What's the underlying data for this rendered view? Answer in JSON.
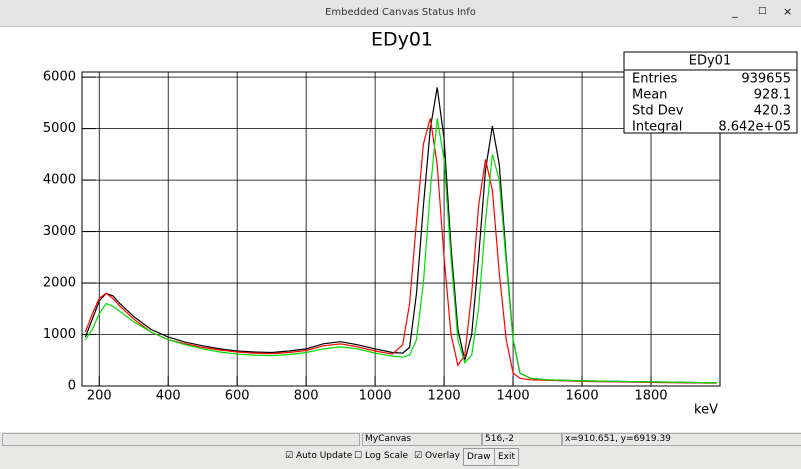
{
  "window_title": "Embedded Canvas Status Info",
  "chart_data": {
    "type": "line",
    "title": "EDy01",
    "x_label": "keV",
    "x": [
      160,
      180,
      200,
      220,
      240,
      260,
      300,
      350,
      400,
      450,
      500,
      550,
      600,
      650,
      700,
      750,
      800,
      850,
      900,
      950,
      1000,
      1050,
      1080,
      1100,
      1120,
      1140,
      1160,
      1180,
      1200,
      1220,
      1240,
      1260,
      1280,
      1300,
      1320,
      1340,
      1360,
      1380,
      1400,
      1420,
      1450,
      1500,
      1600,
      1700,
      1800,
      1900,
      1990
    ],
    "series": [
      {
        "name": "black",
        "color": "#000000",
        "values": [
          950,
          1300,
          1650,
          1800,
          1750,
          1600,
          1350,
          1100,
          950,
          850,
          780,
          720,
          680,
          660,
          650,
          680,
          720,
          820,
          860,
          800,
          720,
          650,
          640,
          750,
          1800,
          3500,
          5000,
          5800,
          4800,
          2700,
          1100,
          500,
          1000,
          2500,
          4200,
          5050,
          4300,
          2500,
          900,
          250,
          150,
          120,
          100,
          90,
          80,
          70,
          60
        ]
      },
      {
        "name": "red",
        "color": "#ff0000",
        "values": [
          1050,
          1400,
          1700,
          1800,
          1700,
          1550,
          1300,
          1050,
          900,
          820,
          750,
          700,
          660,
          640,
          630,
          650,
          690,
          780,
          820,
          760,
          680,
          620,
          800,
          1600,
          3200,
          4700,
          5200,
          4300,
          2500,
          1000,
          400,
          600,
          1800,
          3500,
          4400,
          3800,
          2200,
          900,
          250,
          150,
          120,
          110,
          90,
          80,
          70,
          60,
          55
        ]
      },
      {
        "name": "green",
        "color": "#00dd00",
        "values": [
          900,
          1100,
          1400,
          1600,
          1550,
          1450,
          1250,
          1050,
          900,
          800,
          720,
          660,
          620,
          600,
          590,
          610,
          650,
          720,
          760,
          720,
          640,
          580,
          560,
          600,
          900,
          2000,
          3800,
          5200,
          4400,
          2500,
          900,
          450,
          600,
          1500,
          3200,
          4500,
          4000,
          2400,
          900,
          250,
          150,
          120,
          100,
          90,
          80,
          70,
          60
        ]
      }
    ],
    "xlim": [
      150,
      2000
    ],
    "ylim": [
      0,
      6100
    ],
    "xticks": [
      200,
      400,
      600,
      800,
      1000,
      1200,
      1400,
      1600,
      1800
    ],
    "yticks": [
      0,
      1000,
      2000,
      3000,
      4000,
      5000,
      6000
    ],
    "grid": true
  },
  "stats": {
    "title": "EDy01",
    "rows": [
      [
        "Entries",
        "939655"
      ],
      [
        "Mean",
        "928.1"
      ],
      [
        "Std Dev",
        "420.3"
      ],
      [
        "Integral",
        "8.642e+05"
      ]
    ]
  },
  "status_bar": [
    "MyCanvas",
    "516,-2",
    "x=910.651, y=6919.39"
  ],
  "controls": {
    "auto_update": "Auto Update",
    "log_scale": "Log Scale",
    "overlay": "Overlay",
    "draw": "Draw",
    "exit": "Exit"
  }
}
